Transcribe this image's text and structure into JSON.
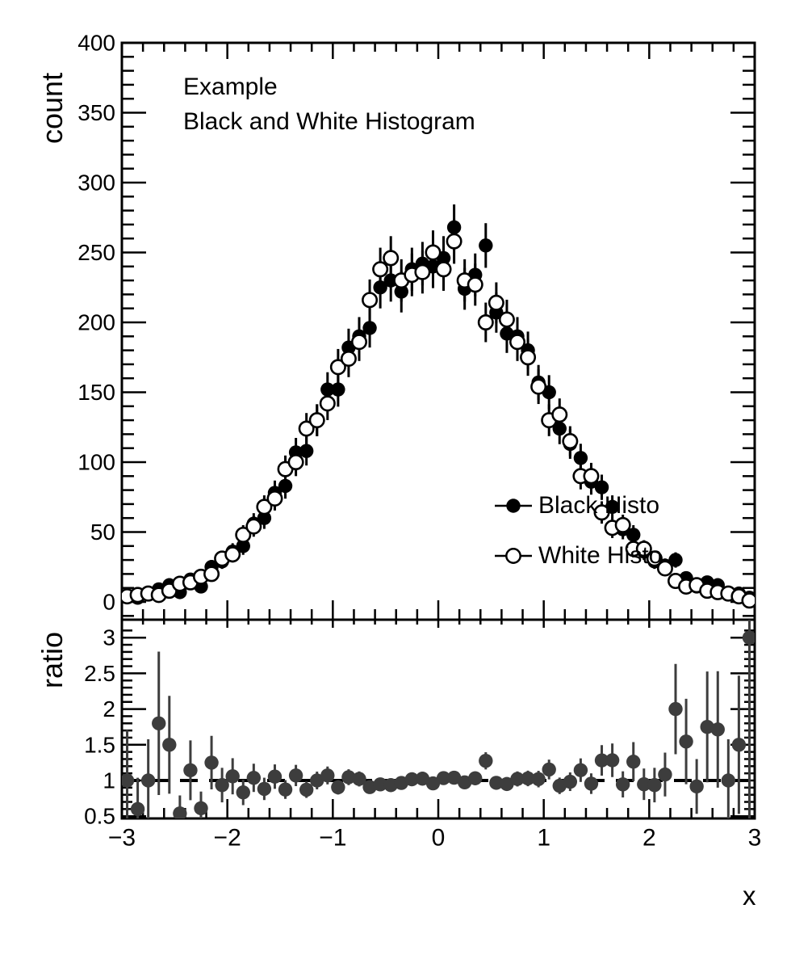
{
  "title": {
    "line1": "Example",
    "line2": "Black and White Histogram"
  },
  "legend": {
    "entries": [
      {
        "label": "Black Histo",
        "marker": "filled-circle"
      },
      {
        "label": "White Histo",
        "marker": "open-circle"
      }
    ]
  },
  "colors": {
    "foreground": "#000000",
    "white_marker_fill": "#ffffff",
    "ratio_marker": "#3d3d3d",
    "background": "#ffffff"
  },
  "chart_data": {
    "type": "scatter",
    "description": "Two-panel ROOT-style plot: upper panel two histograms drawn as points with sqrt(N) error bars, lower panel their bin-by-bin ratio (black/white) with a dashed reference line at 1.",
    "bins": {
      "xmin": -3,
      "xmax": 3,
      "nbins": 60,
      "bin_width": 0.1
    },
    "series": [
      {
        "name": "Black Histo",
        "marker": "filled-circle",
        "values": [
          4,
          3,
          6,
          9,
          12,
          7,
          16,
          11,
          25,
          29,
          36,
          40,
          56,
          60,
          78,
          83,
          107,
          108,
          130,
          152,
          152,
          182,
          190,
          196,
          225,
          230,
          222,
          238,
          242,
          240,
          246,
          268,
          224,
          234,
          255,
          207,
          192,
          190,
          180,
          157,
          150,
          124,
          113,
          103,
          86,
          82,
          68,
          52,
          48,
          36,
          29,
          26,
          30,
          17,
          11,
          14,
          12,
          6,
          6,
          3
        ]
      },
      {
        "name": "White Histo",
        "marker": "open-circle",
        "values": [
          4,
          5,
          6,
          5,
          8,
          13,
          14,
          18,
          20,
          31,
          34,
          48,
          54,
          68,
          74,
          95,
          100,
          124,
          130,
          142,
          168,
          174,
          186,
          216,
          238,
          246,
          230,
          234,
          236,
          250,
          238,
          258,
          230,
          227,
          200,
          214,
          202,
          186,
          175,
          154,
          130,
          134,
          115,
          90,
          90,
          64,
          53,
          55,
          38,
          38,
          31,
          24,
          15,
          11,
          12,
          8,
          7,
          6,
          4,
          1
        ]
      }
    ],
    "errors": "sqrt(N) per bin; ratio error = r*sqrt(1/black + 1/white)",
    "ratio_formula": "black/white",
    "reference_line": 1,
    "axes": {
      "x": {
        "title": "x",
        "min": -3,
        "max": 3,
        "major_values": [
          -3,
          -2,
          -1,
          0,
          1,
          2,
          3
        ],
        "major_labels": [
          "−3",
          "−2",
          "−1",
          "0",
          "1",
          "2",
          "3"
        ],
        "minor_step": 0.2
      },
      "y_main": {
        "title": "count",
        "min": 0,
        "max": 400,
        "major_values": [
          0,
          50,
          100,
          150,
          200,
          250,
          300,
          350,
          400
        ],
        "major_labels": [
          "0",
          "50",
          "100",
          "150",
          "200",
          "250",
          "300",
          "350",
          "400"
        ],
        "minor_step": 10
      },
      "y_ratio": {
        "title": "ratio",
        "min": 0.5,
        "max": 3,
        "major_values": [
          0.5,
          1,
          1.5,
          2,
          2.5,
          3
        ],
        "major_labels": [
          "0.5",
          "1",
          "1.5",
          "2",
          "2.5",
          "3"
        ],
        "minor_step": 0.1
      }
    },
    "layout": {
      "grid": false,
      "legend_position": "center-right of upper panel",
      "panels": [
        "count vs x",
        "ratio vs x"
      ]
    }
  }
}
